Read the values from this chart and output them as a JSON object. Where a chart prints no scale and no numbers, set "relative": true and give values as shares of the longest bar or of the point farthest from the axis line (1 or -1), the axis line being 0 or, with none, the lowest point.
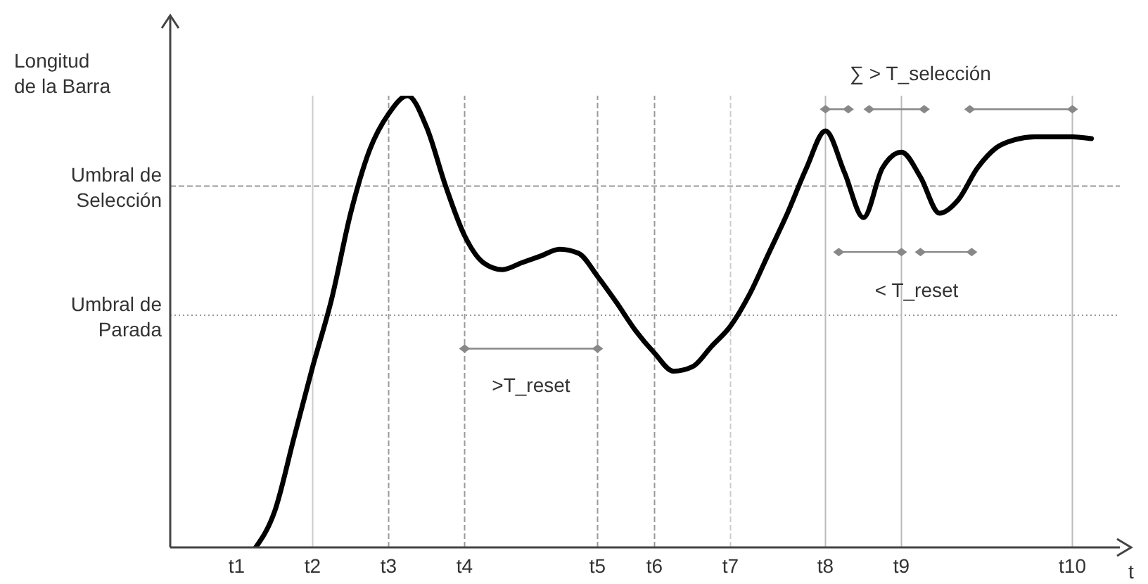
{
  "chart_data": {
    "type": "line",
    "relative": true,
    "ylabel": "Longitud\nde la Barra",
    "xlabel": "t",
    "categories": [
      null,
      null,
      null,
      "t1",
      null,
      null,
      null,
      "t2",
      null,
      null,
      null,
      "t3",
      null,
      null,
      null,
      "t4",
      null,
      null,
      null,
      null,
      null,
      null,
      "t5",
      null,
      null,
      "t6",
      null,
      null,
      null,
      "t7",
      null,
      null,
      null,
      null,
      "t8",
      null,
      null,
      null,
      "t9",
      null,
      null,
      null,
      null,
      null,
      null,
      null,
      null,
      "t10",
      null,
      null
    ],
    "series": [
      {
        "color": "#000000",
        "values": [
          null,
          null,
          null,
          null,
          0,
          0.08,
          0.24,
          0.4,
          0.55,
          0.74,
          0.88,
          0.96,
          1,
          0.93,
          0.8,
          0.69,
          0.63,
          0.615,
          0.63,
          0.645,
          0.66,
          0.651,
          0.6,
          0.542,
          0.48,
          0.43,
          0.39,
          0.4,
          0.445,
          0.49,
          0.56,
          0.65,
          0.74,
          0.84,
          0.922,
          0.83,
          0.73,
          0.84,
          0.875,
          0.82,
          0.74,
          0.77,
          0.84,
          0.885,
          0.903,
          0.909,
          0.909,
          0.909,
          0.905,
          null
        ]
      }
    ],
    "ref_lines": [
      {
        "axis": "y",
        "value": 0.8,
        "label": "Umbral de\nSelección",
        "color": "#999999",
        "line_style": "dashed"
      },
      {
        "axis": "y",
        "value": 0.514,
        "label": "Umbral de\nParada",
        "color": "#999999",
        "line_style": "dotted"
      },
      {
        "axis": "x",
        "value": "t2",
        "color": "#cccccc",
        "line_style": "solid"
      },
      {
        "axis": "x",
        "value": "t3",
        "color": "#999999",
        "line_style": "dashed"
      },
      {
        "axis": "x",
        "value": "t4",
        "color": "#999999",
        "line_style": "dashed"
      },
      {
        "axis": "x",
        "value": "t5",
        "color": "#999999",
        "line_style": "dashed"
      },
      {
        "axis": "x",
        "value": "t6",
        "color": "#999999",
        "line_style": "dashed"
      },
      {
        "axis": "x",
        "value": "t7",
        "color": "#cccccc",
        "line_style": "dashed"
      },
      {
        "axis": "x",
        "value": "t8",
        "color": "#bbbbbb",
        "line_style": "solid"
      },
      {
        "axis": "x",
        "value": "t9",
        "color": "#bbbbbb",
        "line_style": "solid"
      },
      {
        "axis": "x",
        "value": "t10",
        "color": "#bbbbbb",
        "line_style": "solid"
      }
    ],
    "annotations": [
      ">T_reset",
      "∑ > T_selección",
      "< T_reset"
    ],
    "line_style": "solid",
    "marker": "none"
  }
}
